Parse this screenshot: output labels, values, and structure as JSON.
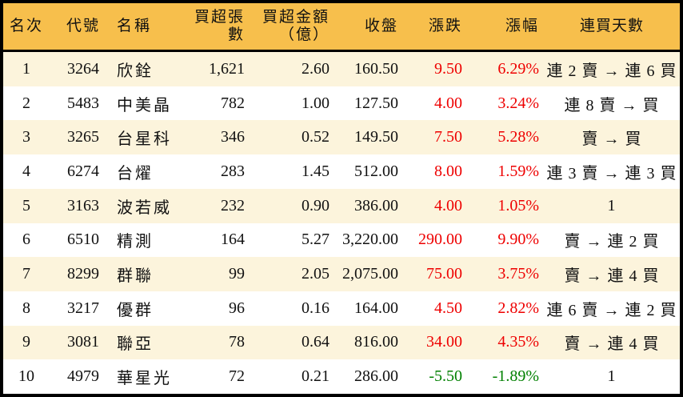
{
  "colors": {
    "header_bg": "#F7BF4C",
    "row_alt_bg": "#FCF4DC",
    "row_bg": "#FFFFFF",
    "border": "#000000",
    "up_text": "#EE0000",
    "down_text": "#008000",
    "text": "#111111"
  },
  "chart_data": {
    "type": "table",
    "columns": [
      {
        "key": "rank",
        "label": "名次",
        "colored": false
      },
      {
        "key": "code",
        "label": "代號",
        "colored": false
      },
      {
        "key": "name",
        "label": "名稱",
        "colored": false
      },
      {
        "key": "volume",
        "label": "買超張數",
        "colored": false
      },
      {
        "key": "amount",
        "label": "買超金額\n（億）",
        "colored": false
      },
      {
        "key": "close",
        "label": "收盤",
        "colored": false
      },
      {
        "key": "change",
        "label": "漲跌",
        "colored": true
      },
      {
        "key": "pct",
        "label": "漲幅",
        "colored": true
      },
      {
        "key": "streak",
        "label": "連買天數",
        "colored": false
      }
    ],
    "rows": [
      {
        "rank": "1",
        "code": "3264",
        "name": "欣銓",
        "volume": "1,621",
        "amount": "2.60",
        "close": "160.50",
        "change": "9.50",
        "pct": "6.29%",
        "streak": "連 2 賣 → 連 6 買",
        "direction": "up"
      },
      {
        "rank": "2",
        "code": "5483",
        "name": "中美晶",
        "volume": "782",
        "amount": "1.00",
        "close": "127.50",
        "change": "4.00",
        "pct": "3.24%",
        "streak": "連 8 賣 → 買",
        "direction": "up"
      },
      {
        "rank": "3",
        "code": "3265",
        "name": "台星科",
        "volume": "346",
        "amount": "0.52",
        "close": "149.50",
        "change": "7.50",
        "pct": "5.28%",
        "streak": "賣 → 買",
        "direction": "up"
      },
      {
        "rank": "4",
        "code": "6274",
        "name": "台燿",
        "volume": "283",
        "amount": "1.45",
        "close": "512.00",
        "change": "8.00",
        "pct": "1.59%",
        "streak": "連 3 賣 → 連 3 買",
        "direction": "up"
      },
      {
        "rank": "5",
        "code": "3163",
        "name": "波若威",
        "volume": "232",
        "amount": "0.90",
        "close": "386.00",
        "change": "4.00",
        "pct": "1.05%",
        "streak": "1",
        "direction": "up"
      },
      {
        "rank": "6",
        "code": "6510",
        "name": "精測",
        "volume": "164",
        "amount": "5.27",
        "close": "3,220.00",
        "change": "290.00",
        "pct": "9.90%",
        "streak": "賣 → 連 2 買",
        "direction": "up"
      },
      {
        "rank": "7",
        "code": "8299",
        "name": "群聯",
        "volume": "99",
        "amount": "2.05",
        "close": "2,075.00",
        "change": "75.00",
        "pct": "3.75%",
        "streak": "賣 → 連 4 買",
        "direction": "up"
      },
      {
        "rank": "8",
        "code": "3217",
        "name": "優群",
        "volume": "96",
        "amount": "0.16",
        "close": "164.00",
        "change": "4.50",
        "pct": "2.82%",
        "streak": "連 6 賣 → 連 2 買",
        "direction": "up"
      },
      {
        "rank": "9",
        "code": "3081",
        "name": "聯亞",
        "volume": "78",
        "amount": "0.64",
        "close": "816.00",
        "change": "34.00",
        "pct": "4.35%",
        "streak": "賣 → 連 4 買",
        "direction": "up"
      },
      {
        "rank": "10",
        "code": "4979",
        "name": "華星光",
        "volume": "72",
        "amount": "0.21",
        "close": "286.00",
        "change": "-5.50",
        "pct": "-1.89%",
        "streak": "1",
        "direction": "down"
      }
    ]
  }
}
